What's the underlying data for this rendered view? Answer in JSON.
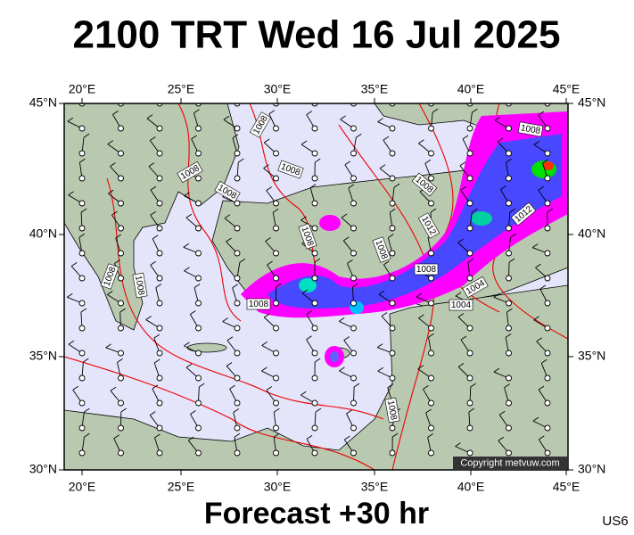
{
  "header": {
    "title": "2100 TRT Wed 16 Jul 2025"
  },
  "footer": {
    "forecast": "Forecast +30 hr",
    "code": "US6"
  },
  "map": {
    "lon_labels": [
      "20°E",
      "25°E",
      "30°E",
      "35°E",
      "40°E",
      "45°E"
    ],
    "lat_labels": [
      "45°N",
      "40°N",
      "35°N",
      "30°N"
    ],
    "isobar_labels": [
      "1008",
      "1008",
      "1008",
      "1008",
      "1008",
      "1008",
      "1008",
      "1008",
      "1008",
      "1008",
      "1012",
      "1008",
      "1004",
      "1004",
      "1008",
      "1012",
      "1008"
    ],
    "copyright": "Copyright metvuw.com"
  }
}
